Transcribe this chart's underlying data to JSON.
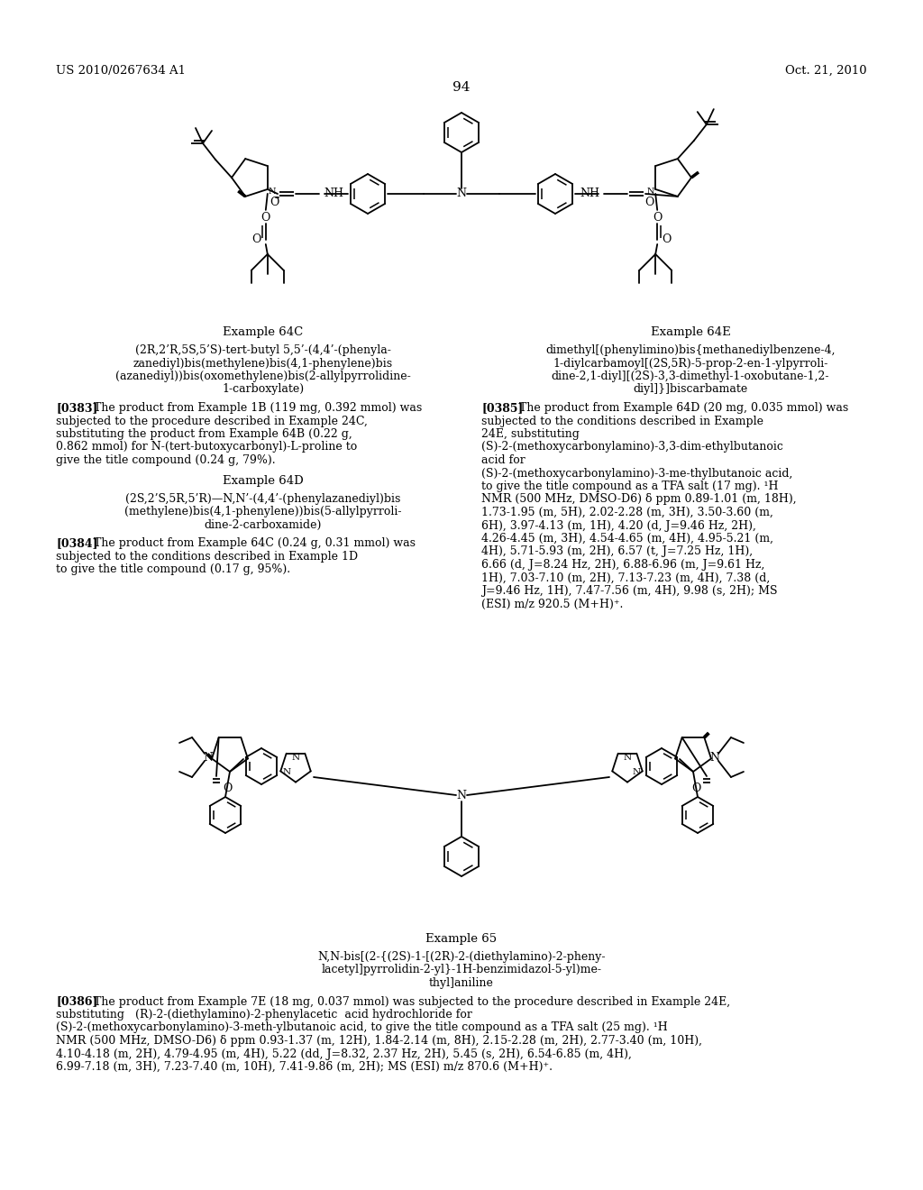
{
  "page_number": "94",
  "header_left": "US 2010/0267634 A1",
  "header_right": "Oct. 21, 2010",
  "bg_color": "#ffffff",
  "text_color": "#000000",
  "example_64c_title": "Example 64C",
  "example_64c_name_lines": [
    "(2R,2’R,5S,5’S)-tert-butyl 5,5’-(4,4’-(phenyla-",
    "zanediyl)bis(methylene)bis(4,1-phenylene)bis",
    "(azanediyl))bis(oxomethylene)bis(2-allylpyrrolidine-",
    "1-carboxylate)"
  ],
  "example_64c_para_bold": "[0383]",
  "example_64c_para_text": "   The product from Example 1B (119 mg, 0.392 mmol) was subjected to the procedure described in Example 24C, substituting the product from Example 64B (0.22 g, 0.862 mmol) for N-(tert-butoxycarbonyl)-L-proline to give the title compound (0.24 g, 79%).",
  "example_64d_title": "Example 64D",
  "example_64d_name_lines": [
    "(2S,2’S,5R,5’R)—N,N’-(4,4’-(phenylazanediyl)bis",
    "(methylene)bis(4,1-phenylene))bis(5-allylpyrroli-",
    "dine-2-carboxamide)"
  ],
  "example_64d_para_bold": "[0384]",
  "example_64d_para_text": "   The product from Example 64C (0.24 g, 0.31 mmol) was subjected to the conditions described in Example 1D to give the title compound (0.17 g, 95%).",
  "example_64e_title": "Example 64E",
  "example_64e_name_lines": [
    "dimethyl[(phenylimino)bis{methanediylbenzene-4,",
    "1-diylcarbamoyl[(2S,5R)-5-prop-2-en-1-ylpyrroli-",
    "dine-2,1-diyl][(2S)-3,3-dimethyl-1-oxobutane-1,2-",
    "diyl]}]biscarbamate"
  ],
  "example_64e_para_bold": "[0385]",
  "example_64e_para_text": "   The product from Example 64D (20 mg, 0.035 mmol) was subjected to the conditions described in Example 24E, substituting  (S)-2-(methoxycarbonylamino)-3,3-dim-ethylbutanoic acid for (S)-2-(methoxycarbonylamino)-3-me-thylbutanoic acid, to give the title compound as a TFA salt (17 mg). ¹H NMR (500 MHz, DMSO-D6) δ ppm 0.89-1.01 (m, 18H), 1.73-1.95 (m, 5H), 2.02-2.28 (m, 3H), 3.50-3.60 (m, 6H), 3.97-4.13 (m, 1H), 4.20 (d, J=9.46 Hz, 2H), 4.26-4.45 (m, 3H), 4.54-4.65 (m, 4H), 4.95-5.21 (m, 4H), 5.71-5.93 (m, 2H), 6.57 (t, J=7.25 Hz, 1H), 6.66 (d, J=8.24 Hz, 2H), 6.88-6.96 (m, J=9.61 Hz, 1H), 7.03-7.10 (m, 2H), 7.13-7.23 (m, 4H), 7.38 (d, J=9.46 Hz, 1H), 7.47-7.56 (m, 4H), 9.98 (s, 2H); MS (ESI) m/z 920.5 (M+H)⁺.",
  "example_65_title": "Example 65",
  "example_65_name_lines": [
    "N,N-bis[(2-{(2S)-1-[(2R)-2-(diethylamino)-2-pheny-",
    "lacetyl]pyrrolidin-2-yl}-1H-benzimidazol-5-yl)me-",
    "thyl]aniline"
  ],
  "example_65_para_bold": "[0386]",
  "example_65_para_text": "   The product from Example 7E (18 mg, 0.037 mmol) was subjected to the procedure described in Example 24E, substituting   (R)-2-(diethylamino)-2-phenylacetic  acid hydrochloride for (S)-2-(methoxycarbonylamino)-3-meth-ylbutanoic acid, to give the title compound as a TFA salt (25 mg). ¹H NMR (500 MHz, DMSO-D6) δ ppm 0.93-1.37 (m, 12H), 1.84-2.14 (m, 8H), 2.15-2.28 (m, 2H), 2.77-3.40 (m, 10H), 4.10-4.18 (m, 2H), 4.79-4.95 (m, 4H), 5.22 (dd, J=8.32, 2.37 Hz, 2H), 5.45 (s, 2H), 6.54-6.85 (m, 4H), 6.99-7.18 (m, 3H), 7.23-7.40 (m, 10H), 7.41-9.86 (m, 2H); MS (ESI) m/z 870.6 (M+H)⁺."
}
